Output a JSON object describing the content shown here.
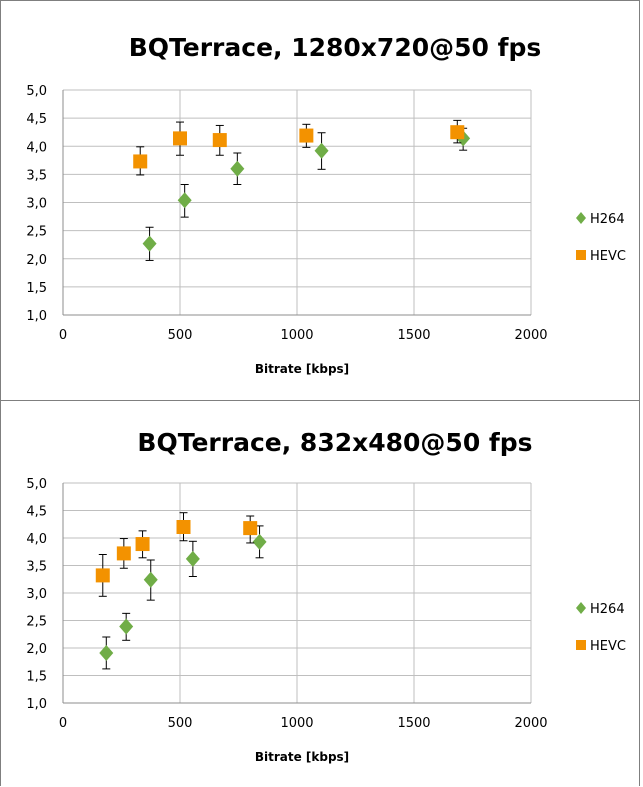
{
  "chart_data": [
    {
      "type": "scatter",
      "title": "BQTerrace, 1280x720@50 fps",
      "xlabel": "Bitrate [kbps]",
      "ylabel": "",
      "xlim": [
        0,
        2000
      ],
      "ylim": [
        1.0,
        5.0
      ],
      "xticks": [
        "0",
        "500",
        "1000",
        "1500",
        "2000"
      ],
      "yticks": [
        "1,0",
        "1,5",
        "2,0",
        "2,5",
        "3,0",
        "3,5",
        "4,0",
        "4,5",
        "5,0"
      ],
      "grid": true,
      "legend": "right",
      "series": [
        {
          "name": "H264",
          "color": "#70ad47",
          "marker": "diamond",
          "points": [
            {
              "x": 370,
              "y": 2.27,
              "err_low": 1.97,
              "err_high": 2.56
            },
            {
              "x": 520,
              "y": 3.04,
              "err_low": 2.74,
              "err_high": 3.32
            },
            {
              "x": 745,
              "y": 3.6,
              "err_low": 3.32,
              "err_high": 3.88
            },
            {
              "x": 1105,
              "y": 3.92,
              "err_low": 3.59,
              "err_high": 4.24
            },
            {
              "x": 1710,
              "y": 4.14,
              "err_low": 3.93,
              "err_high": 4.32
            }
          ]
        },
        {
          "name": "HEVC",
          "color": "#f39200",
          "marker": "square",
          "points": [
            {
              "x": 330,
              "y": 3.73,
              "err_low": 3.49,
              "err_high": 3.99
            },
            {
              "x": 500,
              "y": 4.14,
              "err_low": 3.84,
              "err_high": 4.43
            },
            {
              "x": 670,
              "y": 4.11,
              "err_low": 3.84,
              "err_high": 4.37
            },
            {
              "x": 1040,
              "y": 4.19,
              "err_low": 3.98,
              "err_high": 4.39
            },
            {
              "x": 1685,
              "y": 4.25,
              "err_low": 4.06,
              "err_high": 4.46
            }
          ]
        }
      ]
    },
    {
      "type": "scatter",
      "title": "BQTerrace, 832x480@50 fps",
      "xlabel": "Bitrate [kbps]",
      "ylabel": "",
      "xlim": [
        0,
        2000
      ],
      "ylim": [
        1.0,
        5.0
      ],
      "xticks": [
        "0",
        "500",
        "1000",
        "1500",
        "2000"
      ],
      "yticks": [
        "1,0",
        "1,5",
        "2,0",
        "2,5",
        "3,0",
        "3,5",
        "4,0",
        "4,5",
        "5,0"
      ],
      "grid": true,
      "legend": "right",
      "series": [
        {
          "name": "H264",
          "color": "#70ad47",
          "marker": "diamond",
          "points": [
            {
              "x": 185,
              "y": 1.91,
              "err_low": 1.62,
              "err_high": 2.2
            },
            {
              "x": 270,
              "y": 2.39,
              "err_low": 2.14,
              "err_high": 2.63
            },
            {
              "x": 375,
              "y": 3.24,
              "err_low": 2.87,
              "err_high": 3.6
            },
            {
              "x": 555,
              "y": 3.62,
              "err_low": 3.3,
              "err_high": 3.94
            },
            {
              "x": 840,
              "y": 3.93,
              "err_low": 3.64,
              "err_high": 4.22
            }
          ]
        },
        {
          "name": "HEVC",
          "color": "#f39200",
          "marker": "square",
          "points": [
            {
              "x": 170,
              "y": 3.32,
              "err_low": 2.94,
              "err_high": 3.7
            },
            {
              "x": 260,
              "y": 3.72,
              "err_low": 3.45,
              "err_high": 3.99
            },
            {
              "x": 340,
              "y": 3.89,
              "err_low": 3.64,
              "err_high": 4.13
            },
            {
              "x": 515,
              "y": 4.2,
              "err_low": 3.95,
              "err_high": 4.46
            },
            {
              "x": 800,
              "y": 4.18,
              "err_low": 3.91,
              "err_high": 4.4
            }
          ]
        }
      ]
    }
  ]
}
